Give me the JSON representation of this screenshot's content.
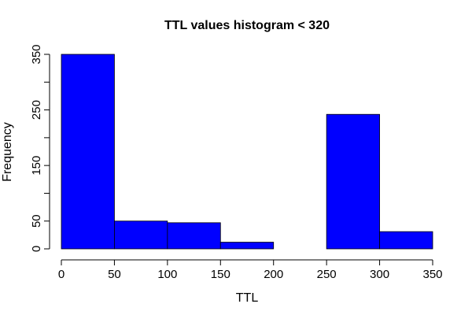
{
  "chart_data": {
    "type": "bar",
    "title": "TTL values histogram < 320",
    "xlabel": "TTL",
    "ylabel": "Frequency",
    "bin_edges": [
      0,
      50,
      100,
      150,
      200,
      250,
      300,
      350
    ],
    "values": [
      350,
      50,
      47,
      12,
      0,
      242,
      31
    ],
    "x_ticks": [
      0,
      50,
      100,
      150,
      200,
      250,
      300,
      350
    ],
    "y_ticks": [
      0,
      50,
      100,
      150,
      200,
      250,
      300,
      350
    ],
    "y_tick_labels": [
      "0",
      "50",
      "",
      "150",
      "",
      "250",
      "",
      "350"
    ],
    "xlim": [
      0,
      350
    ],
    "ylim": [
      0,
      350
    ],
    "bar_color": "#0000ff",
    "grid": false
  }
}
